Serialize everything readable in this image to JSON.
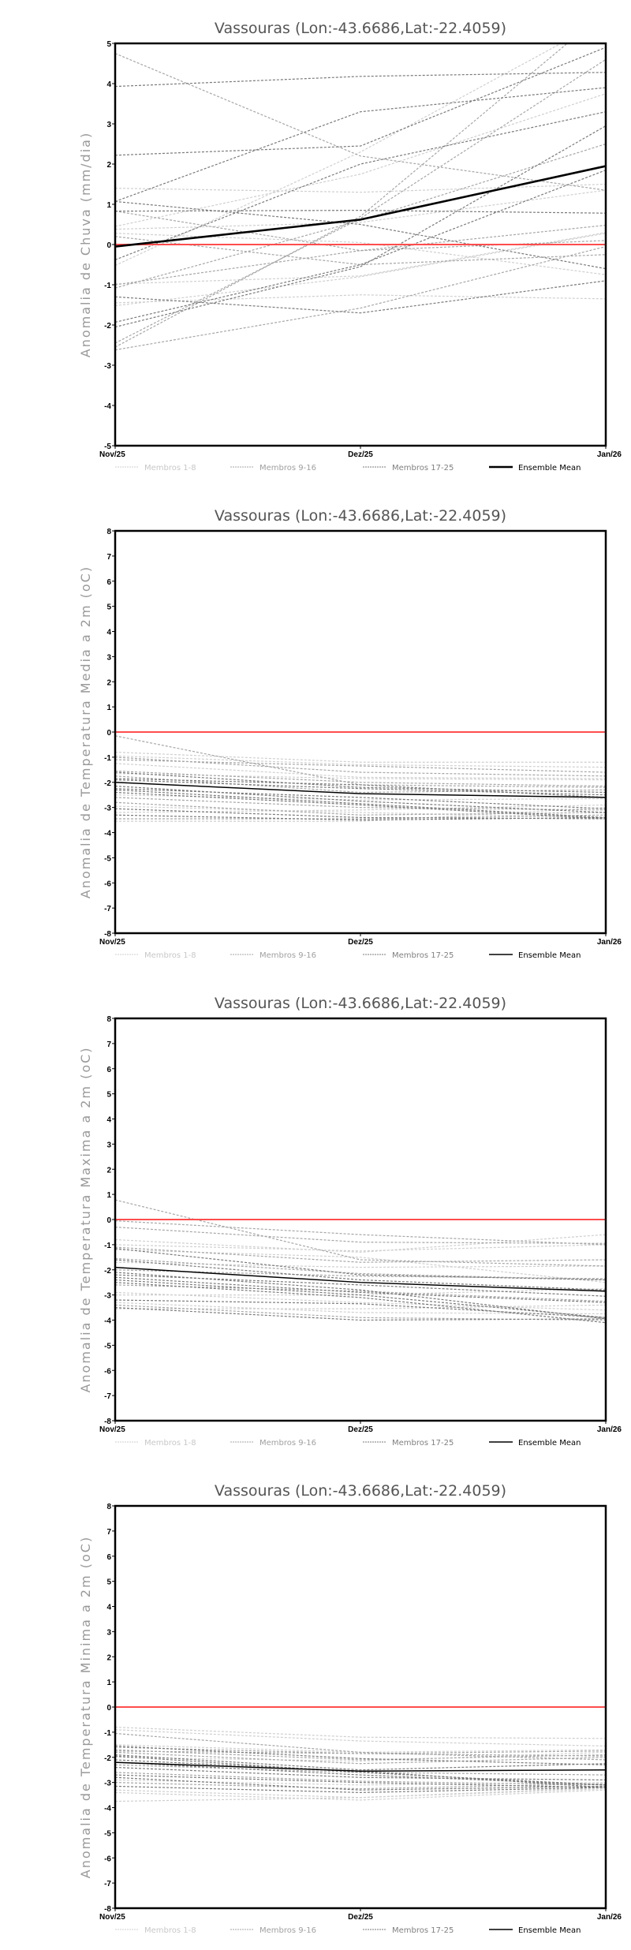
{
  "groups": [
    {
      "label": "Membros 1-8",
      "color": "#cfcfcf"
    },
    {
      "label": "Membros 9-16",
      "color": "#a6a6a6"
    },
    {
      "label": "Membros 17-25",
      "color": "#7a7a7a"
    },
    {
      "label": "Ensemble Mean",
      "color": "#000000"
    }
  ],
  "zero_line_color": "#ff4d4d",
  "chart_data": [
    {
      "type": "line",
      "title": "Vassouras (Lon:-43.6686,Lat:-22.4059)",
      "ylabel": "Anomalia de Chuva (mm/dia)",
      "categories": [
        "Nov/25",
        "Dez/25",
        "Jan/26"
      ],
      "ylim": [
        -5,
        5
      ],
      "yticks": [
        "-5",
        "-4",
        "-3",
        "-2",
        "-1",
        "0",
        "1",
        "2",
        "3",
        "4",
        "5"
      ],
      "ensemble_mean": [
        -0.05,
        0.62,
        1.95
      ],
      "members": [
        [
          1.4,
          1.3,
          1.5
        ],
        [
          0.45,
          1.75,
          3.75
        ],
        [
          0.38,
          0.55,
          1.35
        ],
        [
          0.28,
          0.05,
          -0.75
        ],
        [
          -0.52,
          2.3,
          5.6
        ],
        [
          -0.98,
          -0.78,
          0.3
        ],
        [
          -1.45,
          -1.25,
          -1.35
        ],
        [
          -1.52,
          -0.8,
          0.28
        ],
        [
          4.75,
          2.2,
          1.35
        ],
        [
          0.83,
          -0.15,
          0.48
        ],
        [
          -1.08,
          0.6,
          2.5
        ],
        [
          -2.45,
          0.65,
          4.6
        ],
        [
          -2.55,
          0.7,
          5.8
        ],
        [
          0.2,
          -0.5,
          -0.25
        ],
        [
          -1.0,
          -0.15,
          0.1
        ],
        [
          -2.62,
          -1.58,
          -0.05
        ],
        [
          3.93,
          4.18,
          4.28
        ],
        [
          2.22,
          2.45,
          4.9
        ],
        [
          1.07,
          3.3,
          3.9
        ],
        [
          1.07,
          0.5,
          -0.6
        ],
        [
          0.83,
          0.85,
          0.78
        ],
        [
          -0.38,
          2.0,
          3.3
        ],
        [
          -1.3,
          -1.7,
          -0.9
        ],
        [
          -1.93,
          -0.5,
          1.85
        ],
        [
          -2.05,
          -0.55,
          2.95
        ]
      ]
    },
    {
      "type": "line",
      "title": "Vassouras (Lon:-43.6686,Lat:-22.4059)",
      "ylabel": "Anomalia de Temperatura Media a 2m (oC)",
      "categories": [
        "Nov/25",
        "Dez/25",
        "Jan/26"
      ],
      "ylim": [
        -8,
        8
      ],
      "yticks": [
        "-8",
        "-7",
        "-6",
        "-5",
        "-4",
        "-3",
        "-2",
        "-1",
        "0",
        "1",
        "2",
        "3",
        "4",
        "5",
        "6",
        "7",
        "8"
      ],
      "ensemble_mean": [
        -2.0,
        -2.45,
        -2.6
      ],
      "members": [
        [
          -0.8,
          -1.2,
          -1.2
        ],
        [
          -0.95,
          -1.3,
          -1.4
        ],
        [
          -1.25,
          -1.8,
          -1.85
        ],
        [
          -1.65,
          -1.85,
          -1.9
        ],
        [
          -2.5,
          -2.7,
          -2.65
        ],
        [
          -2.95,
          -3.2,
          -3.4
        ],
        [
          -3.2,
          -3.1,
          -2.9
        ],
        [
          -3.55,
          -3.55,
          -3.0
        ],
        [
          -0.15,
          -2.1,
          -2.2
        ],
        [
          -1.0,
          -1.6,
          -1.75
        ],
        [
          -1.1,
          -1.35,
          -1.6
        ],
        [
          -1.55,
          -2.0,
          -2.15
        ],
        [
          -1.75,
          -2.4,
          -2.3
        ],
        [
          -2.6,
          -3.0,
          -3.1
        ],
        [
          -2.8,
          -3.3,
          -3.2
        ],
        [
          -3.45,
          -3.45,
          -3.3
        ],
        [
          -1.6,
          -2.2,
          -2.4
        ],
        [
          -1.85,
          -2.1,
          -2.6
        ],
        [
          -2.25,
          -2.6,
          -3.05
        ],
        [
          -2.3,
          -2.85,
          -3.4
        ],
        [
          -2.4,
          -2.9,
          -3.45
        ],
        [
          -3.05,
          -3.4,
          -3.45
        ],
        [
          -3.3,
          -3.5,
          -3.4
        ],
        [
          -1.9,
          -2.25,
          -2.5
        ],
        [
          -2.15,
          -2.75,
          -3.2
        ]
      ]
    },
    {
      "type": "line",
      "title": "Vassouras (Lon:-43.6686,Lat:-22.4059)",
      "ylabel": "Anomalia de Temperatura Maxima a 2m (oC)",
      "categories": [
        "Nov/25",
        "Dez/25",
        "Jan/26"
      ],
      "ylim": [
        -8,
        8
      ],
      "yticks": [
        "-8",
        "-7",
        "-6",
        "-5",
        "-4",
        "-3",
        "-2",
        "-1",
        "0",
        "1",
        "2",
        "3",
        "4",
        "5",
        "6",
        "7",
        "8"
      ],
      "ensemble_mean": [
        -1.9,
        -2.5,
        -2.85
      ],
      "members": [
        [
          -0.8,
          -1.3,
          -0.6
        ],
        [
          -1.0,
          -1.25,
          -1.0
        ],
        [
          -1.2,
          -1.5,
          -2.5
        ],
        [
          -1.7,
          -1.9,
          -1.85
        ],
        [
          -3.0,
          -3.0,
          -2.75
        ],
        [
          -3.3,
          -3.7,
          -3.75
        ],
        [
          -3.55,
          -3.55,
          -3.4
        ],
        [
          -2.9,
          -3.3,
          -3.6
        ],
        [
          0.78,
          -1.6,
          -1.85
        ],
        [
          -0.05,
          -0.6,
          -1.0
        ],
        [
          -0.3,
          -0.9,
          -0.95
        ],
        [
          -1.1,
          -1.7,
          -1.6
        ],
        [
          -1.55,
          -2.15,
          -2.4
        ],
        [
          -2.6,
          -2.85,
          -3.25
        ],
        [
          -2.0,
          -2.25,
          -2.35
        ],
        [
          -3.4,
          -3.9,
          -4.0
        ],
        [
          -1.15,
          -2.2,
          -2.4
        ],
        [
          -1.6,
          -2.4,
          -2.8
        ],
        [
          -2.1,
          -2.8,
          -3.95
        ],
        [
          -2.3,
          -2.9,
          -3.3
        ],
        [
          -2.4,
          -3.0,
          -3.9
        ],
        [
          -2.5,
          -3.1,
          -4.1
        ],
        [
          -3.2,
          -3.35,
          -3.9
        ],
        [
          -3.5,
          -4.0,
          -3.95
        ],
        [
          -2.2,
          -2.6,
          -3.05
        ]
      ]
    },
    {
      "type": "line",
      "title": "Vassouras (Lon:-43.6686,Lat:-22.4059)",
      "ylabel": "Anomalia de Temperatura Minima a 2m (oC)",
      "categories": [
        "Nov/25",
        "Dez/25",
        "Jan/26"
      ],
      "ylim": [
        -8,
        8
      ],
      "yticks": [
        "-8",
        "-7",
        "-6",
        "-5",
        "-4",
        "-3",
        "-2",
        "-1",
        "0",
        "1",
        "2",
        "3",
        "4",
        "5",
        "6",
        "7",
        "8"
      ],
      "ensemble_mean": [
        -2.2,
        -2.55,
        -2.5
      ],
      "members": [
        [
          -0.8,
          -1.2,
          -1.25
        ],
        [
          -0.9,
          -1.35,
          -1.55
        ],
        [
          -1.5,
          -1.8,
          -1.7
        ],
        [
          -2.0,
          -2.15,
          -1.8
        ],
        [
          -2.9,
          -3.1,
          -3.0
        ],
        [
          -3.3,
          -3.6,
          -3.25
        ],
        [
          -3.4,
          -3.7,
          -3.3
        ],
        [
          -3.75,
          -3.6,
          -3.2
        ],
        [
          -1.05,
          -1.8,
          -2.1
        ],
        [
          -1.6,
          -1.85,
          -1.75
        ],
        [
          -1.7,
          -2.1,
          -1.9
        ],
        [
          -1.8,
          -2.25,
          -2.0
        ],
        [
          -2.3,
          -2.6,
          -2.7
        ],
        [
          -2.6,
          -2.95,
          -3.1
        ],
        [
          -3.0,
          -3.25,
          -3.05
        ],
        [
          -1.75,
          -1.85,
          -1.95
        ],
        [
          -1.9,
          -2.5,
          -2.25
        ],
        [
          -1.95,
          -2.6,
          -3.1
        ],
        [
          -2.1,
          -2.55,
          -3.2
        ],
        [
          -2.2,
          -2.7,
          -3.1
        ],
        [
          -2.4,
          -2.8,
          -2.9
        ],
        [
          -2.7,
          -3.0,
          -3.2
        ],
        [
          -3.15,
          -3.4,
          -3.2
        ],
        [
          -1.55,
          -2.05,
          -2.3
        ],
        [
          -2.8,
          -3.3,
          -3.15
        ]
      ]
    }
  ]
}
